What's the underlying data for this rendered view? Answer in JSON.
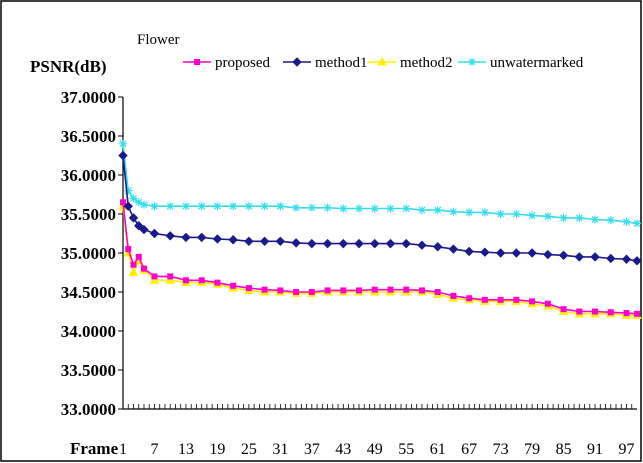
{
  "chart_data": {
    "type": "line",
    "title": "Flower",
    "ylabel": "PSNR(dB)",
    "xlabel": "Frame",
    "ylim": [
      33.0,
      37.0
    ],
    "yticks": [
      "33.0000",
      "33.5000",
      "34.0000",
      "34.5000",
      "35.0000",
      "35.5000",
      "36.0000",
      "36.5000",
      "37.0000"
    ],
    "xticks": [
      "1",
      "7",
      "13",
      "19",
      "25",
      "31",
      "37",
      "43",
      "49",
      "55",
      "61",
      "67",
      "73",
      "79",
      "85",
      "91",
      "97"
    ],
    "x": [
      1,
      2,
      3,
      4,
      5,
      7,
      10,
      13,
      16,
      19,
      22,
      25,
      28,
      31,
      34,
      37,
      40,
      43,
      46,
      49,
      52,
      55,
      58,
      61,
      64,
      67,
      70,
      73,
      76,
      79,
      82,
      85,
      88,
      91,
      94,
      97,
      99
    ],
    "series": [
      {
        "name": "proposed",
        "color": "#ff00cc",
        "marker": "square",
        "values": [
          35.65,
          35.05,
          34.85,
          34.95,
          34.8,
          34.7,
          34.7,
          34.65,
          34.65,
          34.62,
          34.58,
          34.55,
          34.53,
          34.52,
          34.5,
          34.5,
          34.52,
          34.52,
          34.52,
          34.53,
          34.53,
          34.53,
          34.52,
          34.5,
          34.45,
          34.42,
          34.4,
          34.4,
          34.4,
          34.38,
          34.35,
          34.28,
          34.25,
          34.25,
          34.24,
          34.23,
          34.22
        ]
      },
      {
        "name": "method1",
        "color": "#1a1a8c",
        "marker": "diamond",
        "values": [
          36.25,
          35.6,
          35.45,
          35.35,
          35.3,
          35.25,
          35.22,
          35.2,
          35.2,
          35.18,
          35.17,
          35.15,
          35.15,
          35.15,
          35.13,
          35.12,
          35.12,
          35.12,
          35.12,
          35.12,
          35.12,
          35.12,
          35.1,
          35.08,
          35.05,
          35.02,
          35.01,
          35.0,
          35.0,
          35.0,
          34.98,
          34.97,
          34.95,
          34.95,
          34.93,
          34.92,
          34.9
        ]
      },
      {
        "name": "method2",
        "color": "#ffee00",
        "marker": "triangle",
        "values": [
          35.6,
          35.0,
          34.75,
          34.9,
          34.78,
          34.65,
          34.65,
          34.62,
          34.62,
          34.6,
          34.55,
          34.52,
          34.5,
          34.5,
          34.48,
          34.48,
          34.5,
          34.5,
          34.5,
          34.5,
          34.5,
          34.5,
          34.5,
          34.47,
          34.42,
          34.4,
          34.38,
          34.38,
          34.38,
          34.35,
          34.32,
          34.25,
          34.22,
          34.22,
          34.22,
          34.2,
          34.2
        ]
      },
      {
        "name": "unwatermarked",
        "color": "#33ddee",
        "marker": "star",
        "values": [
          36.4,
          35.8,
          35.7,
          35.65,
          35.62,
          35.6,
          35.6,
          35.6,
          35.6,
          35.6,
          35.6,
          35.6,
          35.6,
          35.6,
          35.58,
          35.58,
          35.58,
          35.57,
          35.57,
          35.57,
          35.57,
          35.57,
          35.55,
          35.55,
          35.53,
          35.52,
          35.52,
          35.5,
          35.5,
          35.48,
          35.47,
          35.45,
          35.45,
          35.43,
          35.42,
          35.4,
          35.38
        ]
      }
    ],
    "grid": false,
    "legend_position": "top"
  }
}
